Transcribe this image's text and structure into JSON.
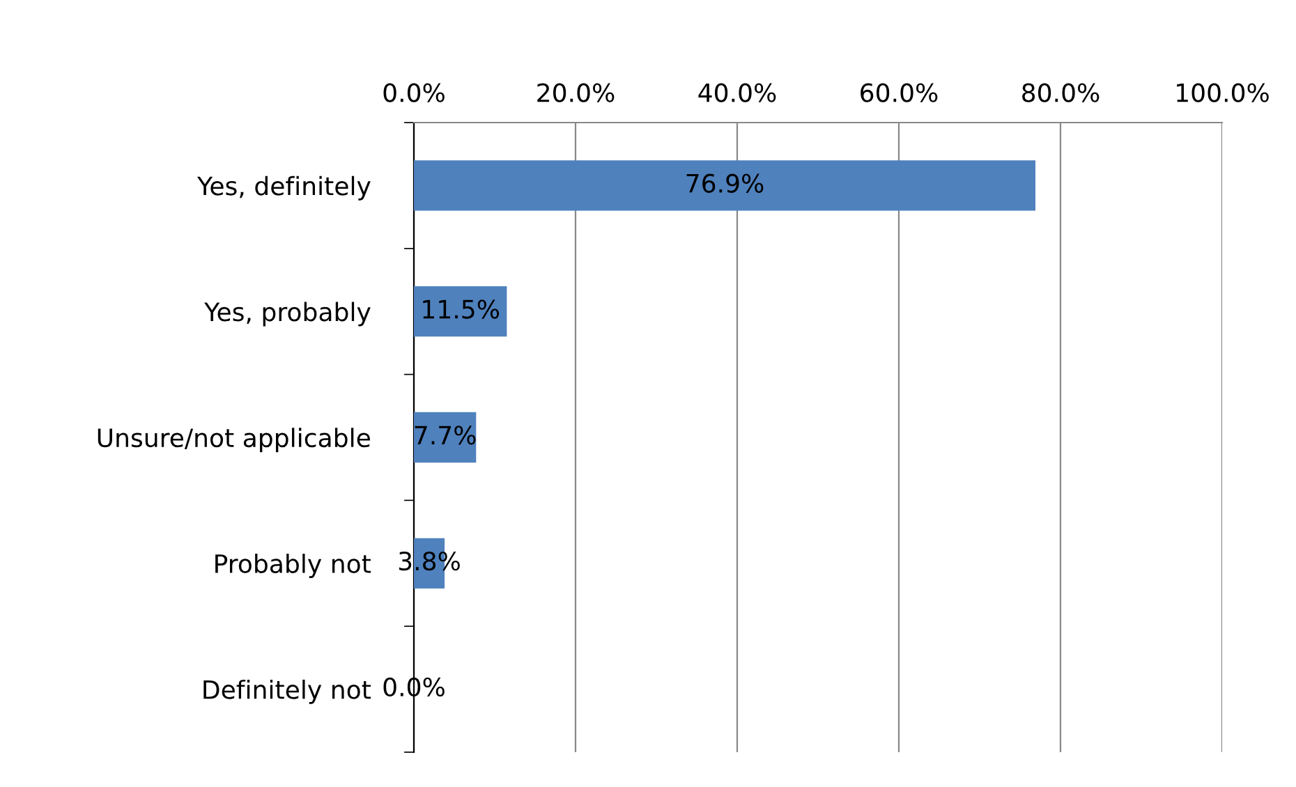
{
  "chart_data": {
    "type": "bar",
    "orientation": "horizontal",
    "categories": [
      "Yes, definitely",
      "Yes, probably",
      "Unsure/not applicable",
      "Probably not",
      "Definitely not"
    ],
    "values": [
      76.9,
      11.5,
      7.7,
      3.8,
      0.0
    ],
    "value_labels": [
      "76.9%",
      "11.5%",
      "7.7%",
      "3.8%",
      "0.0%"
    ],
    "color": "#4f81bd",
    "xlim": [
      0,
      100
    ],
    "xticks": [
      {
        "value": 0,
        "label": "0.0%"
      },
      {
        "value": 20,
        "label": "20.0%"
      },
      {
        "value": 40,
        "label": "40.0%"
      },
      {
        "value": 60,
        "label": "60.0%"
      },
      {
        "value": 80,
        "label": "80.0%"
      },
      {
        "value": 100,
        "label": "100.0%"
      }
    ],
    "grid": "x",
    "legend": false
  }
}
